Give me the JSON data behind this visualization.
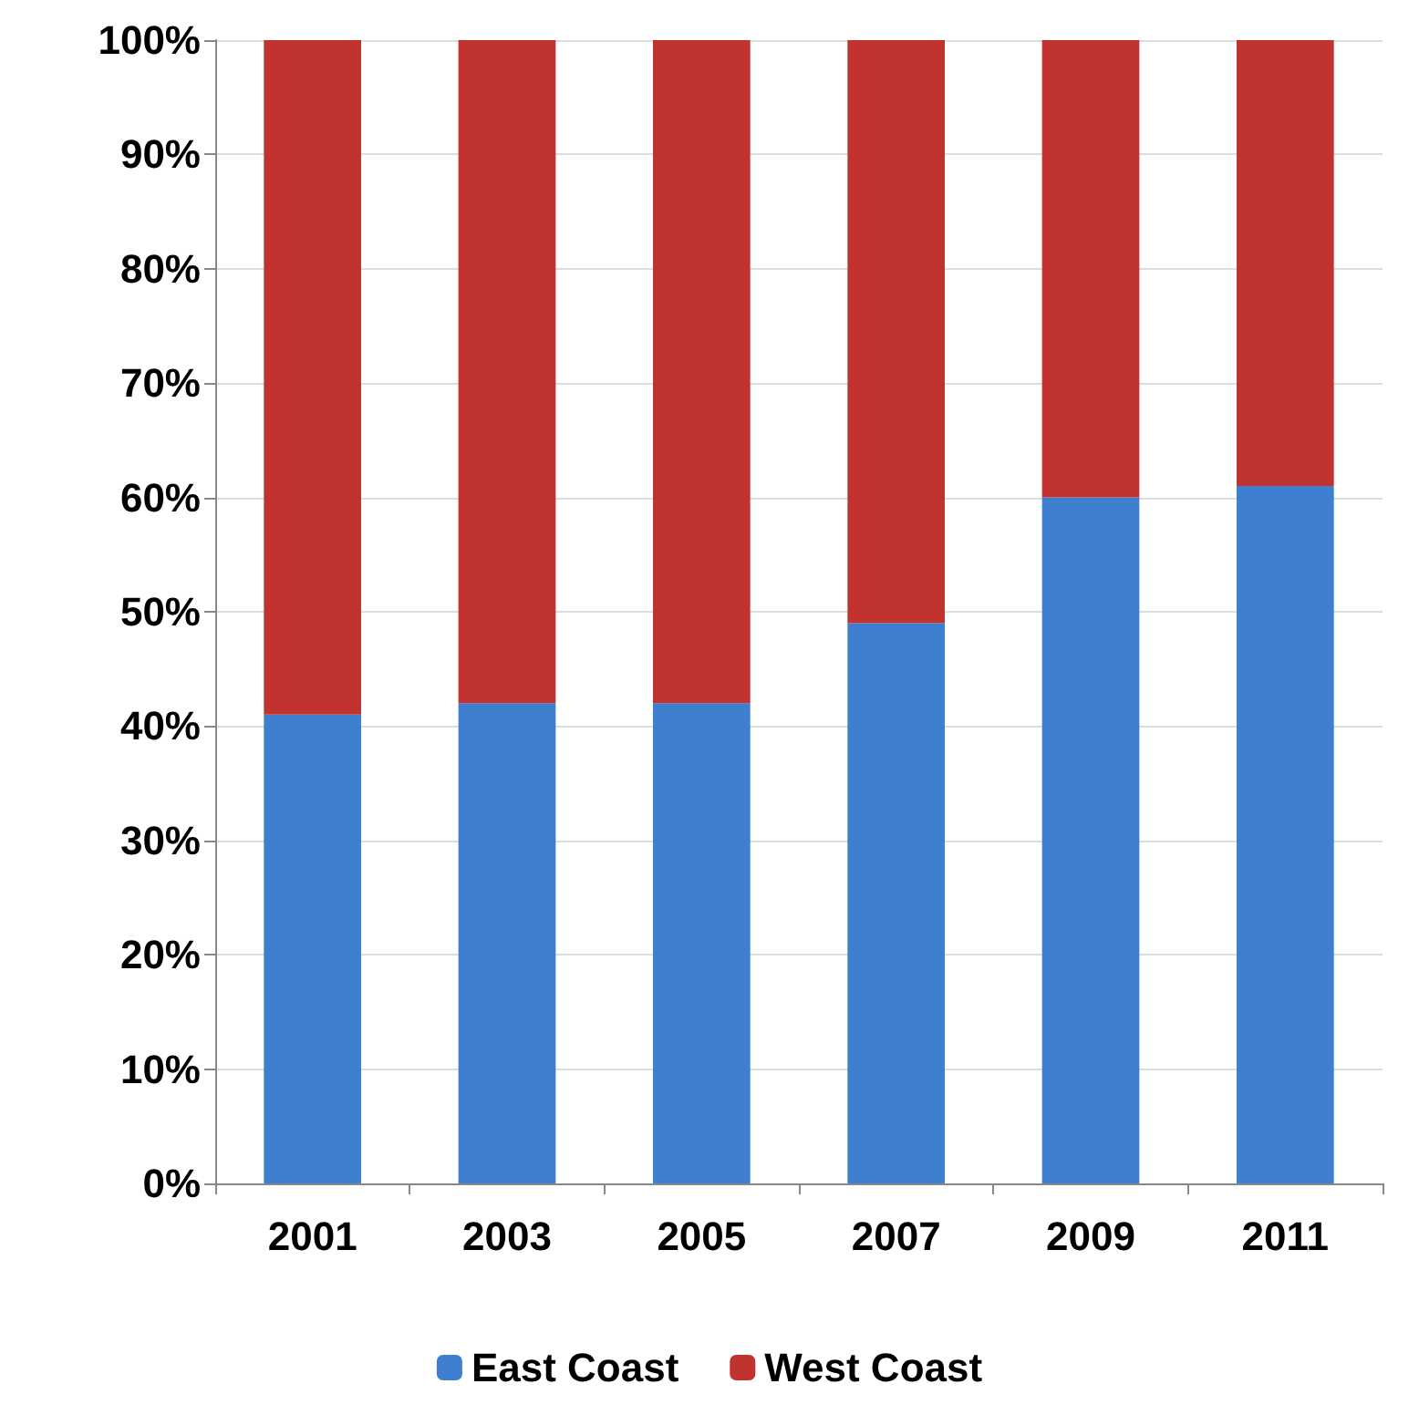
{
  "chart_data": {
    "type": "bar",
    "stacked": true,
    "categories": [
      "2001",
      "2003",
      "2005",
      "2007",
      "2009",
      "2011"
    ],
    "series": [
      {
        "name": "East Coast",
        "color": "#3f7fcf",
        "values": [
          41,
          42,
          42,
          49,
          60,
          61
        ]
      },
      {
        "name": "West Coast",
        "color": "#c0332f",
        "values": [
          59,
          58,
          58,
          51,
          40,
          39
        ]
      }
    ],
    "ylim": [
      0,
      100
    ],
    "yticks": [
      {
        "value": 0,
        "label": "0%"
      },
      {
        "value": 10,
        "label": "10%"
      },
      {
        "value": 20,
        "label": "20%"
      },
      {
        "value": 30,
        "label": "30%"
      },
      {
        "value": 40,
        "label": "40%"
      },
      {
        "value": 50,
        "label": "50%"
      },
      {
        "value": 60,
        "label": "60%"
      },
      {
        "value": 70,
        "label": "70%"
      },
      {
        "value": 80,
        "label": "80%"
      },
      {
        "value": 90,
        "label": "90%"
      },
      {
        "value": 100,
        "label": "100%"
      }
    ],
    "grid": "y",
    "legend": "bottom"
  }
}
